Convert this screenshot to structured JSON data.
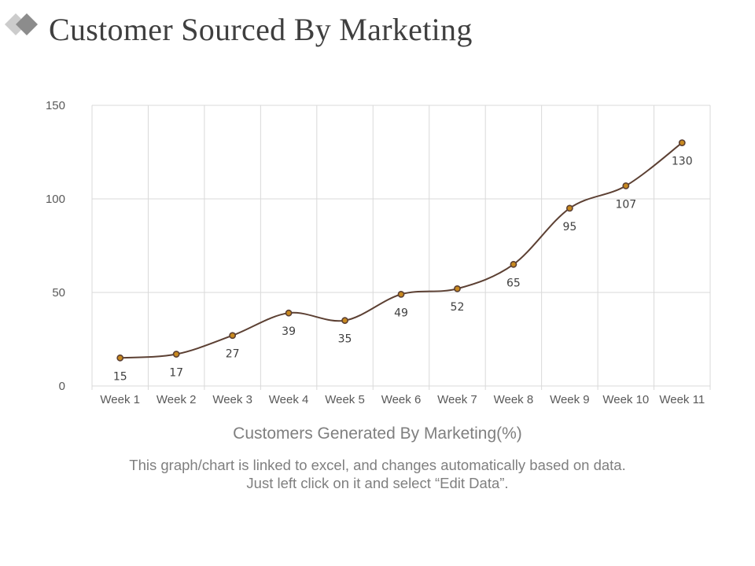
{
  "page": {
    "title": "Customer Sourced By Marketing",
    "note": "This graph/chart is linked to excel, and changes automatically based on data. Just left click on it and select “Edit Data”."
  },
  "colors": {
    "line": "#5c4033",
    "marker_fill": "#c8891f",
    "grid": "#d9d9d9",
    "logo_dark": "#8c8c8c",
    "logo_light": "#cccccc"
  },
  "chart_data": {
    "type": "line",
    "categories": [
      "Week 1",
      "Week 2",
      "Week 3",
      "Week 4",
      "Week 5",
      "Week 6",
      "Week 7",
      "Week 8",
      "Week 9",
      "Week 10",
      "Week 11"
    ],
    "series": [
      {
        "name": "Customers Generated By Marketing(%)",
        "values": [
          15,
          17,
          27,
          39,
          35,
          49,
          52,
          65,
          95,
          107,
          130
        ]
      }
    ],
    "xlabel": "Customers Generated By Marketing(%)",
    "ylabel": "",
    "ylim": [
      0,
      150
    ],
    "yticks": [
      0,
      50,
      100,
      150
    ],
    "smooth": true,
    "grid": true,
    "data_labels": true
  }
}
